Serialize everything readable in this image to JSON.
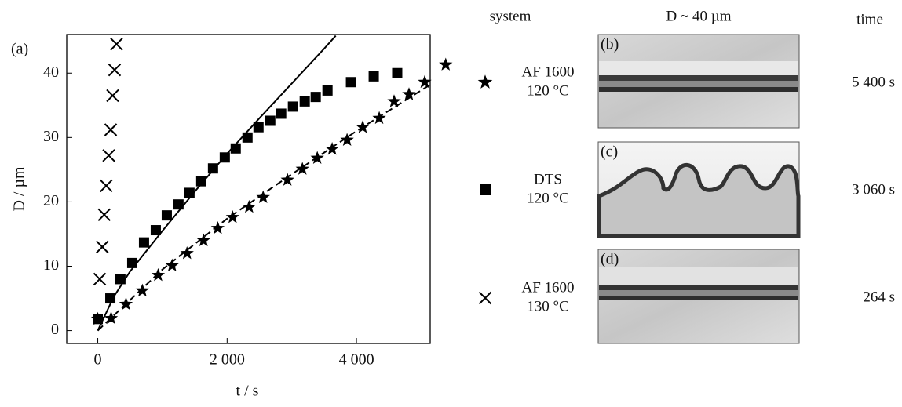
{
  "chart_data": {
    "type": "scatter",
    "panel_label": "(a)",
    "xlabel": "t / s",
    "ylabel": "D / µm",
    "xlim": [
      -480,
      5140
    ],
    "ylim": [
      -2,
      46
    ],
    "xticks": [
      0,
      {
        "value": 2000,
        "label": "2 000"
      },
      {
        "value": 4000,
        "label": "4 000"
      }
    ],
    "yticks": [
      0,
      10,
      20,
      30,
      40
    ],
    "series": [
      {
        "name": [
          "AF 1600",
          "120 °C"
        ],
        "marker": "star",
        "color": "#000",
        "x": [
          0,
          206,
          436,
          690,
          933,
          1150,
          1380,
          1636,
          1855,
          2085,
          2340,
          2557,
          2933,
          3164,
          3394,
          3624,
          3855,
          4097,
          4352,
          4582,
          4812,
          5055,
          5380
        ],
        "values": [
          1.8,
          1.9,
          4.1,
          6.2,
          8.6,
          10.1,
          12,
          14,
          15.9,
          17.6,
          19.2,
          20.7,
          23.4,
          25.1,
          26.8,
          28.2,
          29.6,
          31.6,
          33,
          35.6,
          36.7,
          38.6,
          41.3
        ],
        "fit_x": [
          0,
          1000,
          2000,
          3000,
          4000,
          5140
        ],
        "fit_values": [
          0,
          9.5,
          17.4,
          24.3,
          31,
          38.2
        ],
        "fit_style": "dashed"
      },
      {
        "name": [
          "DTS",
          "120 °C"
        ],
        "marker": "square",
        "color": "#000",
        "x": [
          0,
          194,
          350,
          533,
          715,
          897,
          1067,
          1248,
          1418,
          1600,
          1782,
          1964,
          2133,
          2315,
          2485,
          2667,
          2836,
          3018,
          3200,
          3370,
          3552,
          3915,
          4267,
          4630
        ],
        "values": [
          1.8,
          5,
          8,
          10.5,
          13.7,
          15.6,
          17.9,
          19.6,
          21.4,
          23.2,
          25.2,
          26.9,
          28.3,
          30,
          31.6,
          32.6,
          33.7,
          34.8,
          35.6,
          36.3,
          37.3,
          38.6,
          39.5,
          40
        ],
        "fit_x": [
          0,
          250,
          500,
          1000,
          1500,
          2000,
          2500,
          3000,
          3500,
          3680
        ],
        "fit_values": [
          0,
          5.3,
          9.2,
          15.5,
          21.6,
          27.5,
          33,
          38.4,
          43.8,
          45.8
        ],
        "fit_style": "solid"
      },
      {
        "name": [
          "AF 1600",
          "130 °C"
        ],
        "marker": "cross",
        "color": "#000",
        "x": [
          30,
          70,
          100,
          130,
          170,
          200,
          230,
          260,
          290
        ],
        "values": [
          8,
          13,
          18,
          22.5,
          27.2,
          31.2,
          36.5,
          40.5,
          44.5
        ]
      }
    ]
  },
  "images": {
    "header": {
      "system": "system",
      "size": "D ~ 40 µm",
      "time": "time"
    },
    "panels": [
      {
        "label": "(b)",
        "time": "5 400 s"
      },
      {
        "label": "(c)",
        "time": "3 060 s"
      },
      {
        "label": "(d)",
        "time": "264 s"
      }
    ]
  }
}
